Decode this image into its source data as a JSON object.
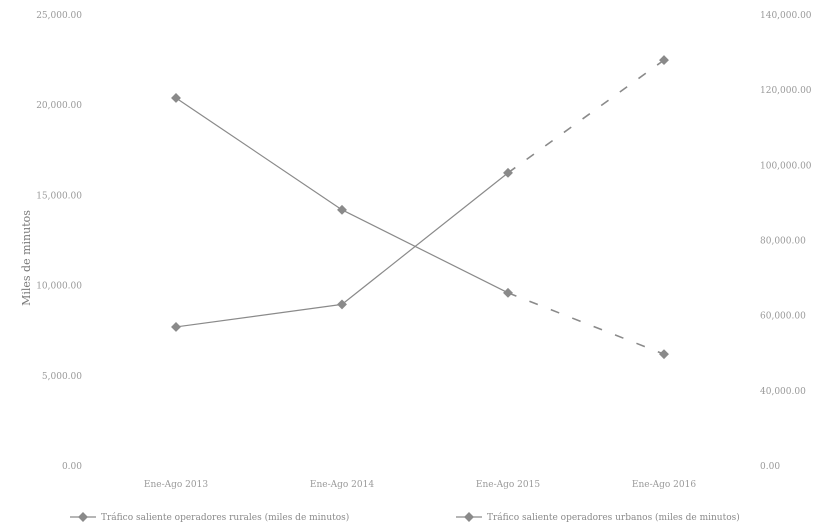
{
  "chart_data": {
    "type": "line",
    "categories": [
      "Ene-Ago 2013",
      "Ene-Ago 2014",
      "Ene-Ago 2015",
      "Ene-Ago 2016"
    ],
    "ylabel": "Miles de minutos",
    "y_ticks": [
      "25,000.00",
      "20,000.00",
      "15,000.00",
      "10,000.00",
      "5,000.00",
      "0.00"
    ],
    "ylim": [
      0,
      25000
    ],
    "y2_ticks": [
      "140,000.00",
      "120,000.00",
      "100,000.00",
      "80,000.00",
      "60,000.00",
      "40,000.00",
      "0.00"
    ],
    "y2_ticks_values": [
      140000,
      120000,
      100000,
      80000,
      60000,
      40000,
      0
    ],
    "grid": false,
    "legend_position": "bottom",
    "series": [
      {
        "name": "Tráfico saliente operadores rurales (miles de minutos)",
        "axis": "left",
        "values": [
          20400,
          14200,
          9600,
          6200
        ],
        "color": "#8a8a8a",
        "dashed_from_index": 2
      },
      {
        "name": "Tráfico saliente operadores urbanos (miles de minutos)",
        "axis": "right",
        "values": [
          57000,
          63000,
          98000,
          128000
        ],
        "color": "#8a8a8a",
        "dashed_from_index": 2
      }
    ]
  }
}
